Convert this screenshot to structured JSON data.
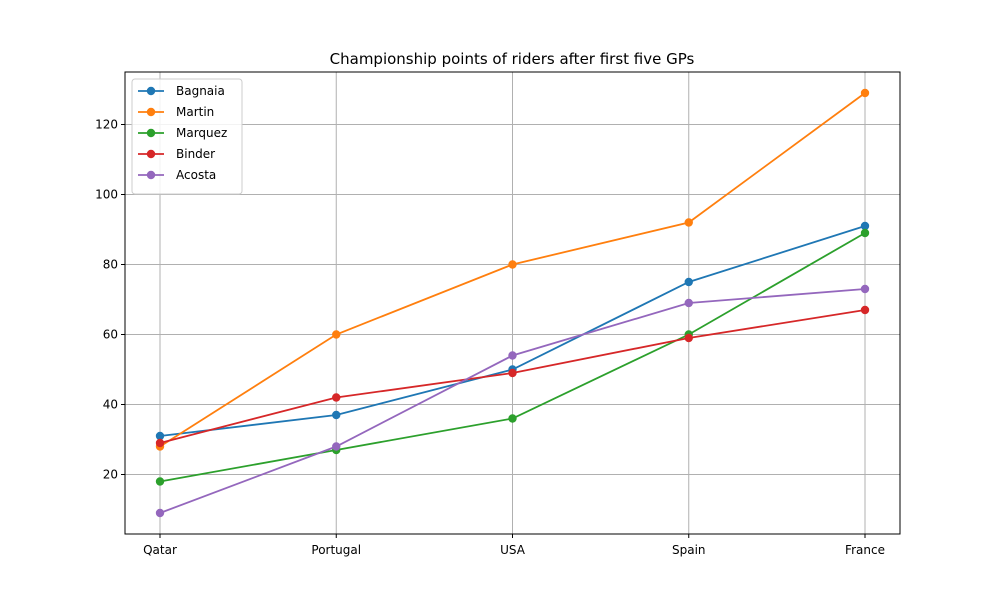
{
  "chart_data": {
    "type": "line",
    "title": "Championship points of riders after first five GPs",
    "xlabel": "",
    "ylabel": "",
    "categories": [
      "Qatar",
      "Portugal",
      "USA",
      "Spain",
      "France"
    ],
    "ylim": [
      3,
      135
    ],
    "yticks": [
      20,
      40,
      60,
      80,
      100,
      120
    ],
    "grid": true,
    "legend_position": "top-left",
    "series": [
      {
        "name": "Bagnaia",
        "color": "#1f77b4",
        "values": [
          31,
          37,
          50,
          75,
          91
        ]
      },
      {
        "name": "Martin",
        "color": "#ff7f0e",
        "values": [
          28,
          60,
          80,
          92,
          129
        ]
      },
      {
        "name": "Marquez",
        "color": "#2ca02c",
        "values": [
          18,
          27,
          36,
          60,
          89
        ]
      },
      {
        "name": "Binder",
        "color": "#d62728",
        "values": [
          29,
          42,
          49,
          59,
          67
        ]
      },
      {
        "name": "Acosta",
        "color": "#9467bd",
        "values": [
          9,
          28,
          54,
          69,
          73
        ]
      }
    ]
  }
}
